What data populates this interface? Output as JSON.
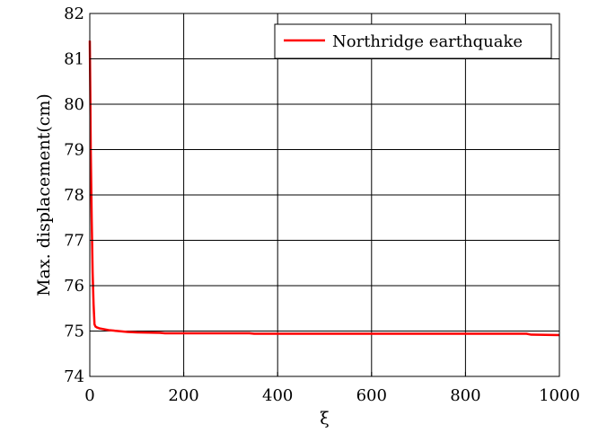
{
  "chart_data": {
    "type": "line",
    "title": "",
    "xlabel": "ξ",
    "ylabel": "Max. displacement(cm)",
    "xlim": [
      0,
      1000
    ],
    "ylim": [
      74,
      82
    ],
    "xticks": [
      0,
      200,
      400,
      600,
      800,
      1000
    ],
    "yticks": [
      74,
      75,
      76,
      77,
      78,
      79,
      80,
      81,
      82
    ],
    "grid": true,
    "legend_position": "top-right",
    "series": [
      {
        "name": "Northridge earthquake",
        "color": "#ff0000",
        "x": [
          0,
          1,
          2,
          4,
          6,
          8,
          10,
          12,
          15,
          20,
          30,
          40,
          60,
          80,
          100,
          150,
          160,
          200,
          300,
          340,
          350,
          400,
          500,
          600,
          700,
          800,
          900,
          930,
          940,
          1000
        ],
        "y": [
          81.4,
          80.3,
          79.0,
          77.5,
          76.3,
          75.6,
          75.15,
          75.1,
          75.08,
          75.06,
          75.04,
          75.02,
          75.0,
          74.98,
          74.97,
          74.96,
          74.95,
          74.95,
          74.95,
          74.95,
          74.94,
          74.94,
          74.94,
          74.94,
          74.94,
          74.94,
          74.94,
          74.94,
          74.92,
          74.91
        ]
      }
    ]
  }
}
